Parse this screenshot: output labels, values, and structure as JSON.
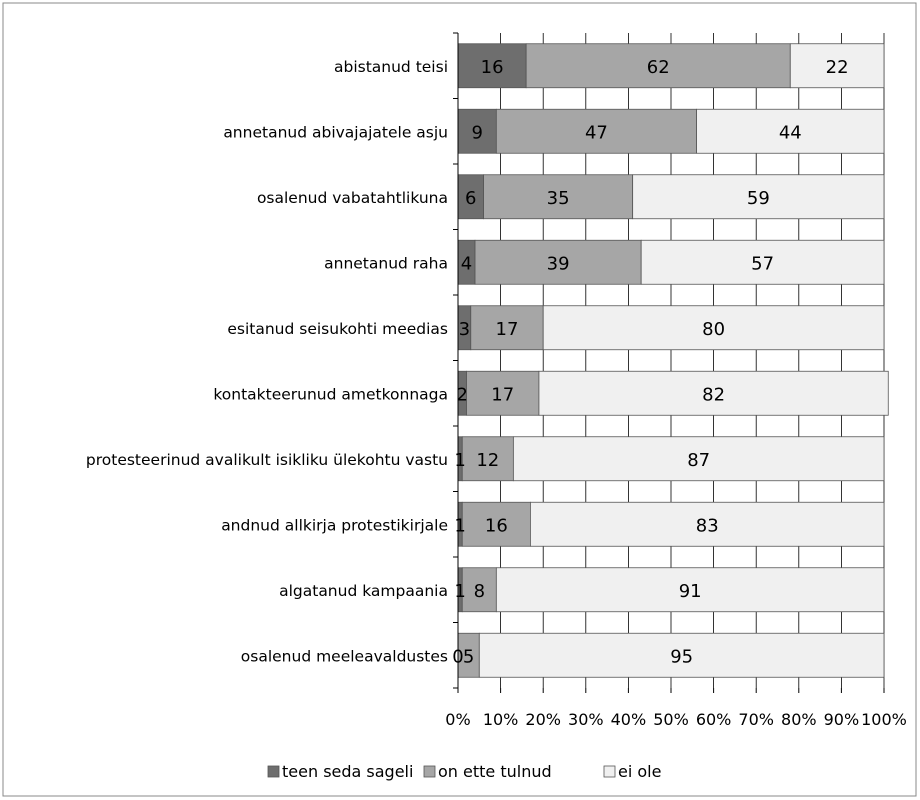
{
  "chart_data": {
    "type": "bar",
    "orientation": "horizontal",
    "stacked": true,
    "percent": true,
    "categories": [
      "abistanud teisi",
      "annetanud abivajajatele asju",
      "osalenud vabatahtlikuna",
      "annetanud raha",
      "esitanud seisukohti meedias",
      "kontakteerunud ametkonnaga",
      "protesteerinud avalikult isikliku ülekohtu vastu",
      "andnud allkirja protestikirjale",
      "algatanud kampaania",
      "osalenud meeleavaldustes"
    ],
    "series": [
      {
        "name": "teen seda sageli",
        "color": "#6e6e6e",
        "values": [
          16,
          9,
          6,
          4,
          3,
          2,
          1,
          1,
          1,
          0
        ]
      },
      {
        "name": "on ette tulnud",
        "color": "#a6a6a6",
        "values": [
          62,
          47,
          35,
          39,
          17,
          17,
          12,
          16,
          8,
          5
        ]
      },
      {
        "name": "ei ole",
        "color": "#f0f0f0",
        "values": [
          22,
          44,
          59,
          57,
          80,
          82,
          87,
          83,
          91,
          95
        ]
      }
    ],
    "xticks": [
      "0%",
      "10%",
      "20%",
      "30%",
      "40%",
      "50%",
      "60%",
      "70%",
      "80%",
      "90%",
      "100%"
    ],
    "xlim": [
      0,
      100
    ],
    "grid": true,
    "legend_position": "bottom"
  }
}
